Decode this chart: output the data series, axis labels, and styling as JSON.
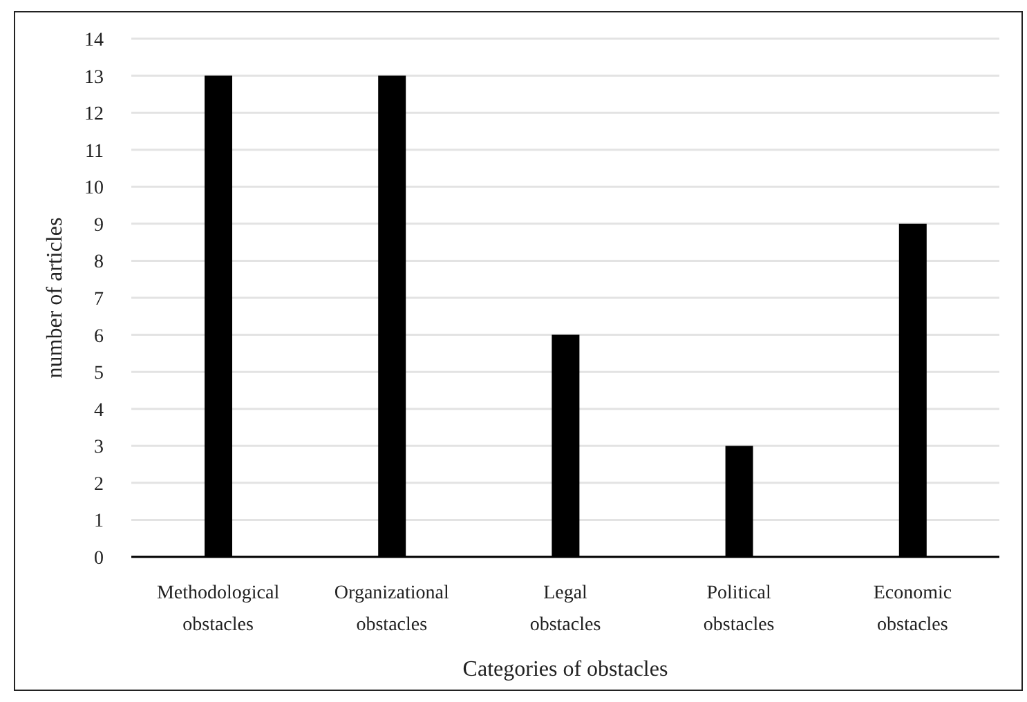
{
  "chart_data": {
    "type": "bar",
    "xlabel": "Categories of obstacles",
    "ylabel": "number of articles",
    "categories": [
      "Methodological obstacles",
      "Organizational obstacles",
      "Legal obstacles",
      "Political obstacles",
      "Economic obstacles"
    ],
    "values": [
      13,
      13,
      6,
      3,
      9
    ],
    "color": "#000000",
    "ylim": [
      0,
      14
    ],
    "yticks": [
      0,
      1,
      2,
      3,
      4,
      5,
      6,
      7,
      8,
      9,
      10,
      11,
      12,
      13,
      14
    ],
    "grid": "y"
  }
}
